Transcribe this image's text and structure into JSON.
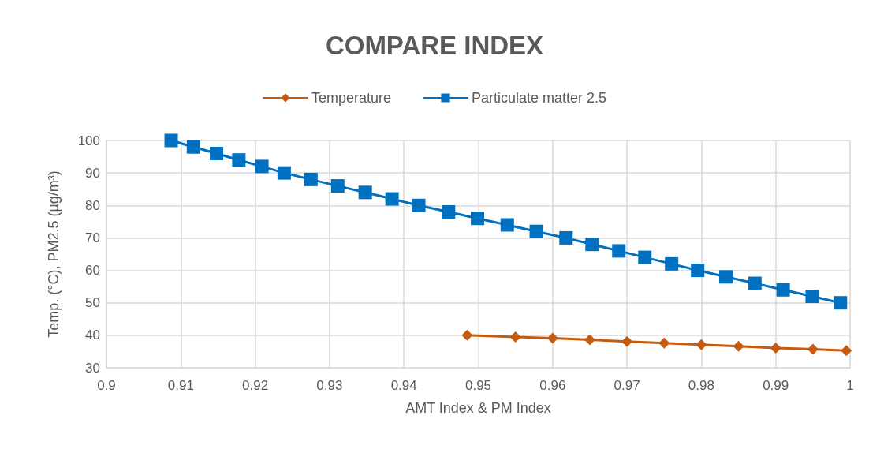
{
  "chart_data": {
    "type": "line",
    "title": "COMPARE INDEX",
    "xlabel": "AMT Index & PM Index",
    "ylabel": "Temp. (°C), PM2.5 (µg/m³)",
    "series": [
      {
        "name": "Temperature",
        "color": "#c55a11",
        "marker": "diamond",
        "x": [
          0.9485,
          0.955,
          0.96,
          0.965,
          0.97,
          0.975,
          0.98,
          0.985,
          0.99,
          0.995,
          0.9995
        ],
        "values": [
          40,
          39.5,
          39.1,
          38.6,
          38.1,
          37.6,
          37.1,
          36.6,
          36.1,
          35.7,
          35.3
        ]
      },
      {
        "name": "Particulate matter 2.5",
        "color": "#0070c0",
        "marker": "square",
        "x": [
          0.9087,
          0.9117,
          0.9148,
          0.9178,
          0.9209,
          0.9239,
          0.9275,
          0.9311,
          0.9348,
          0.9384,
          0.942,
          0.946,
          0.9499,
          0.9539,
          0.9578,
          0.9618,
          0.9653,
          0.9689,
          0.9724,
          0.976,
          0.9795,
          0.9833,
          0.9872,
          0.991,
          0.9949,
          0.9987
        ],
        "values": [
          100,
          98,
          96,
          94,
          92,
          90,
          88,
          86,
          84,
          82,
          80,
          78,
          76,
          74,
          72,
          70,
          68,
          66,
          64,
          62,
          60,
          58,
          56,
          54,
          52,
          50
        ]
      }
    ],
    "xlim": [
      0.9,
      1
    ],
    "xticks": [
      0.9,
      0.91,
      0.92,
      0.93,
      0.94,
      0.95,
      0.96,
      0.97,
      0.98,
      0.99,
      1
    ],
    "ylim": [
      30,
      100
    ],
    "yticks": [
      30,
      40,
      50,
      60,
      70,
      80,
      90,
      100
    ],
    "grid": true,
    "legend": "top",
    "line_style": "solid"
  }
}
